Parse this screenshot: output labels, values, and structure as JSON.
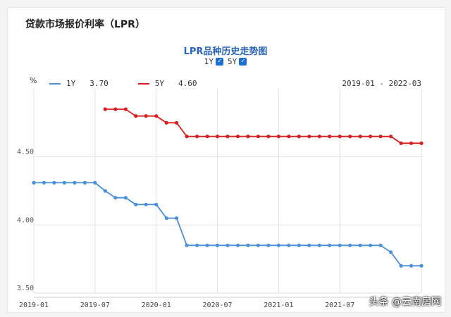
{
  "app_title": "贷款市场报价利率（LPR）",
  "chart_title": "LPR品种历史走势图",
  "toggles": [
    {
      "label": "1Y",
      "checked": true
    },
    {
      "label": "5Y",
      "checked": true
    }
  ],
  "unit_label": "%",
  "legend": [
    {
      "name": "1Y",
      "value": "3.70",
      "color": "#4a90d9"
    },
    {
      "name": "5Y",
      "value": "4.60",
      "color": "#d61f1f"
    }
  ],
  "range_label": "2019-01 - 2022-03",
  "watermark": "头条 @云南房网",
  "chart_data": {
    "type": "line",
    "x": [
      "2019-01",
      "2019-02",
      "2019-03",
      "2019-04",
      "2019-05",
      "2019-06",
      "2019-07",
      "2019-08",
      "2019-09",
      "2019-10",
      "2019-11",
      "2019-12",
      "2020-01",
      "2020-02",
      "2020-03",
      "2020-04",
      "2020-05",
      "2020-06",
      "2020-07",
      "2020-08",
      "2020-09",
      "2020-10",
      "2020-11",
      "2020-12",
      "2021-01",
      "2021-02",
      "2021-03",
      "2021-04",
      "2021-05",
      "2021-06",
      "2021-07",
      "2021-08",
      "2021-09",
      "2021-10",
      "2021-11",
      "2021-12",
      "2022-01",
      "2022-02",
      "2022-03"
    ],
    "series": [
      {
        "name": "1Y",
        "color": "#4a90d9",
        "values": [
          4.31,
          4.31,
          4.31,
          4.31,
          4.31,
          4.31,
          4.31,
          4.25,
          4.2,
          4.2,
          4.15,
          4.15,
          4.15,
          4.05,
          4.05,
          3.85,
          3.85,
          3.85,
          3.85,
          3.85,
          3.85,
          3.85,
          3.85,
          3.85,
          3.85,
          3.85,
          3.85,
          3.85,
          3.85,
          3.85,
          3.85,
          3.85,
          3.85,
          3.85,
          3.85,
          3.8,
          3.7,
          3.7,
          3.7
        ]
      },
      {
        "name": "5Y",
        "color": "#d61f1f",
        "values": [
          null,
          null,
          null,
          null,
          null,
          null,
          null,
          4.85,
          4.85,
          4.85,
          4.8,
          4.8,
          4.8,
          4.75,
          4.75,
          4.65,
          4.65,
          4.65,
          4.65,
          4.65,
          4.65,
          4.65,
          4.65,
          4.65,
          4.65,
          4.65,
          4.65,
          4.65,
          4.65,
          4.65,
          4.65,
          4.65,
          4.65,
          4.65,
          4.65,
          4.65,
          4.6,
          4.6,
          4.6
        ]
      }
    ],
    "x_ticks": [
      "2019-01",
      "2019-07",
      "2020-01",
      "2020-07",
      "2021-01",
      "2021-07"
    ],
    "y_ticks": [
      "3.50",
      "4.00",
      "4.50"
    ],
    "ylim": [
      3.5,
      5.0
    ],
    "grid": true,
    "legend_position": "top-left"
  }
}
